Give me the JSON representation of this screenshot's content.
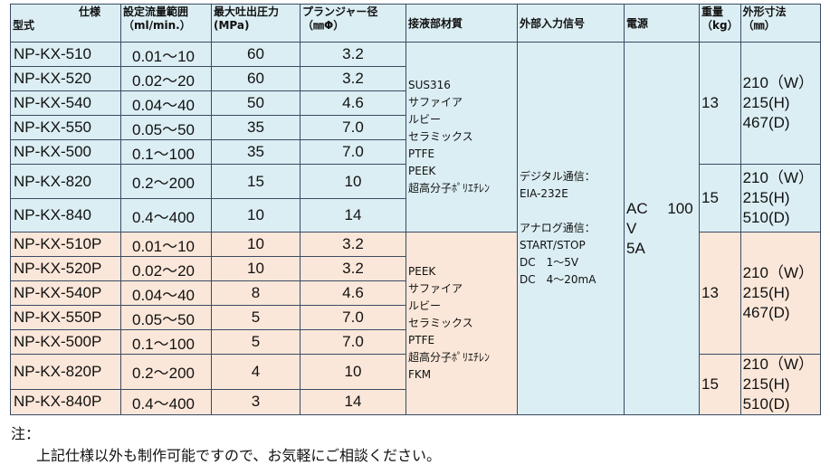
{
  "header": {
    "spec": "仕様",
    "model": "型式",
    "flow_l1": "設定流量範囲",
    "flow_l2": "（ml/min.）",
    "pressure_l1": "最大吐出圧力",
    "pressure_l2": "(MPa)",
    "plunger_l1": "プランジャー径",
    "plunger_l2": "（㎜Φ）",
    "material": "接液部材質",
    "signal": "外部入力信号",
    "power": "電源",
    "weight_l1": "重量",
    "weight_l2": "（kg）",
    "dims_l1": "外形寸法",
    "dims_l2": "（㎜）"
  },
  "rows": [
    {
      "model": "NP-KX-510",
      "flow": "0.01～10",
      "pressure": "60",
      "plunger": "3.2"
    },
    {
      "model": "NP-KX-520",
      "flow": "0.02～20",
      "pressure": "60",
      "plunger": "3.2"
    },
    {
      "model": "NP-KX-540",
      "flow": "0.04～40",
      "pressure": "50",
      "plunger": "4.6"
    },
    {
      "model": "NP-KX-550",
      "flow": "0.05～50",
      "pressure": "35",
      "plunger": "7.0"
    },
    {
      "model": "NP-KX-500",
      "flow": "0.1～100",
      "pressure": "35",
      "plunger": "7.0"
    },
    {
      "model": "NP-KX-820",
      "flow": "0.2～200",
      "pressure": "15",
      "plunger": "10"
    },
    {
      "model": "NP-KX-840",
      "flow": "0.4～400",
      "pressure": "10",
      "plunger": "14"
    },
    {
      "model": "NP-KX-510P",
      "flow": "0.01～10",
      "pressure": "10",
      "plunger": "3.2"
    },
    {
      "model": "NP-KX-520P",
      "flow": "0.02～20",
      "pressure": "10",
      "plunger": "3.2"
    },
    {
      "model": "NP-KX-540P",
      "flow": "0.04～40",
      "pressure": "8",
      "plunger": "4.6"
    },
    {
      "model": "NP-KX-550P",
      "flow": "0.05～50",
      "pressure": "5",
      "plunger": "7.0"
    },
    {
      "model": "NP-KX-500P",
      "flow": "0.1～100",
      "pressure": "5",
      "plunger": "7.0"
    },
    {
      "model": "NP-KX-820P",
      "flow": "0.2～200",
      "pressure": "4",
      "plunger": "10"
    },
    {
      "model": "NP-KX-840P",
      "flow": "0.4～400",
      "pressure": "3",
      "plunger": "14"
    }
  ],
  "materials": {
    "standard": "SUS316\nサファイア\nルビー\nセラミックス\nPTFE\nPEEK\n超高分子ﾎﾟﾘｴﾁﾚﾝ",
    "p_series": "PEEK\nサファイア\nルビー\nセラミックス\nPTFE\n超高分子ﾎﾟﾘｴﾁﾚﾝ\nFKM"
  },
  "signal": "デジタル通信：\nEIA-232E\n\nアナログ通信：\nSTART/STOP\nDC　1～5V\nDC　4～20mA",
  "power": "AC　 100\nV\n5A",
  "groups": [
    {
      "weight": "13",
      "dims": "210（W）\n215(H)\n467(D)"
    },
    {
      "weight": "15",
      "dims": "210（W）\n215(H)\n510(D)"
    },
    {
      "weight": "13",
      "dims": "210（W）\n215(H)\n467(D)"
    },
    {
      "weight": "15",
      "dims": "210（W）\n215(H)\n510(D)"
    }
  ],
  "note": {
    "label": "注：",
    "text": "上記仕様以外も制作可能ですので、お気軽にご相談ください。"
  }
}
